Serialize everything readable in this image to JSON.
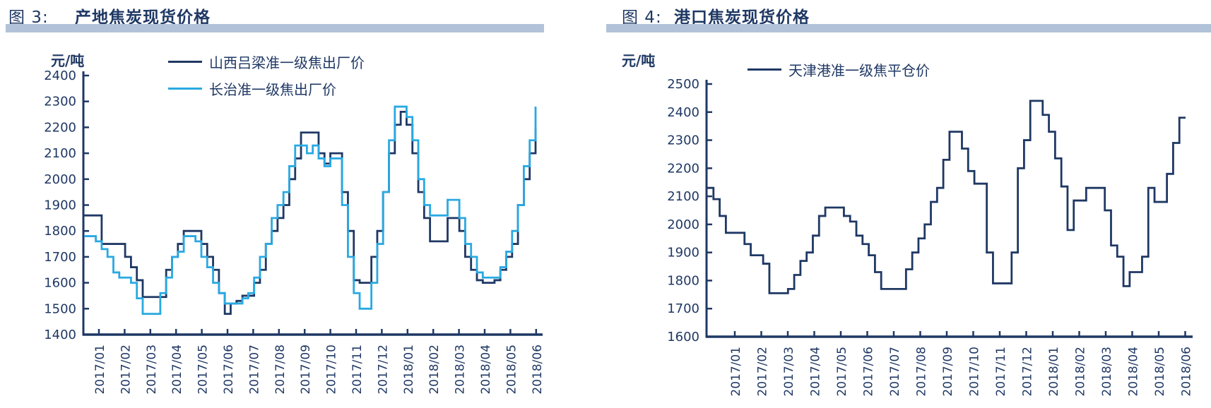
{
  "page": {
    "figure3_label": "图 3:",
    "figure3_title": "产地焦炭现货价格",
    "figure4_label": "图 4:",
    "figure4_title": "港口焦炭现货价格"
  },
  "colors": {
    "navy": "#1F3864",
    "light_blue": "#29A9E2",
    "title_bar": "#B2C3D9",
    "axis": "#1F3864",
    "tick_text": "#1F3864"
  },
  "chart_data": [
    {
      "type": "line",
      "title": "产地焦炭现货价格",
      "unit": "元/吨",
      "ylim": [
        1400,
        2400
      ],
      "yticks": [
        2400,
        2300,
        2200,
        2100,
        2000,
        1900,
        1800,
        1700,
        1600,
        1500,
        1400
      ],
      "grid": false,
      "legend_position": "top",
      "x_categories": [
        "2017/01",
        "2017/02",
        "2017/03",
        "2017/04",
        "2017/05",
        "2017/06",
        "2017/07",
        "2017/08",
        "2017/09",
        "2017/10",
        "2017/11",
        "2017/12",
        "2018/01",
        "2018/02",
        "2018/03",
        "2018/04",
        "2018/05",
        "2018/06"
      ],
      "series": [
        {
          "name": "山西吕梁准一级焦出厂价",
          "color": "#1F3864",
          "values": [
            1860,
            1860,
            1860,
            1750,
            1750,
            1750,
            1750,
            1700,
            1660,
            1610,
            1545,
            1545,
            1545,
            1545,
            1650,
            1700,
            1750,
            1800,
            1800,
            1800,
            1750,
            1700,
            1650,
            1560,
            1480,
            1520,
            1530,
            1550,
            1550,
            1600,
            1650,
            1750,
            1800,
            1850,
            1900,
            2000,
            2080,
            2180,
            2180,
            2180,
            2100,
            2060,
            2100,
            2100,
            1950,
            1800,
            1610,
            1600,
            1600,
            1700,
            1800,
            1950,
            2100,
            2210,
            2260,
            2210,
            2100,
            1950,
            1850,
            1760,
            1760,
            1760,
            1850,
            1850,
            1800,
            1700,
            1650,
            1610,
            1600,
            1600,
            1610,
            1650,
            1700,
            1750,
            1900,
            2000,
            2100,
            2200
          ]
        },
        {
          "name": "长治准一级焦出厂价",
          "color": "#29A9E2",
          "values": [
            1780,
            1780,
            1760,
            1730,
            1700,
            1640,
            1620,
            1620,
            1600,
            1540,
            1480,
            1480,
            1480,
            1560,
            1620,
            1700,
            1720,
            1780,
            1780,
            1760,
            1700,
            1660,
            1600,
            1560,
            1520,
            1520,
            1520,
            1540,
            1560,
            1620,
            1700,
            1750,
            1850,
            1900,
            1950,
            2050,
            2130,
            2130,
            2100,
            2130,
            2080,
            2050,
            2080,
            2080,
            1900,
            1700,
            1560,
            1500,
            1500,
            1600,
            1750,
            1950,
            2150,
            2280,
            2280,
            2240,
            2150,
            2000,
            1900,
            1860,
            1860,
            1860,
            1920,
            1920,
            1850,
            1750,
            1700,
            1640,
            1620,
            1620,
            1620,
            1660,
            1720,
            1800,
            1900,
            2050,
            2150,
            2280
          ]
        }
      ]
    },
    {
      "type": "line",
      "title": "港口焦炭现货价格",
      "unit": "元/吨",
      "ylim": [
        1600,
        2500
      ],
      "yticks": [
        2500,
        2400,
        2300,
        2200,
        2100,
        2000,
        1900,
        1800,
        1700,
        1600
      ],
      "grid": false,
      "legend_position": "top",
      "x_categories": [
        "2017/01",
        "2017/02",
        "2017/03",
        "2017/04",
        "2017/05",
        "2017/06",
        "2017/07",
        "2017/08",
        "2017/09",
        "2017/10",
        "2017/11",
        "2017/12",
        "2018/01",
        "2018/02",
        "2018/03",
        "2018/04",
        "2018/05",
        "2018/06"
      ],
      "series": [
        {
          "name": "天津港准一级焦平仓价",
          "color": "#1F3864",
          "values": [
            2130,
            2090,
            2030,
            1970,
            1970,
            1970,
            1930,
            1890,
            1890,
            1860,
            1755,
            1755,
            1755,
            1770,
            1820,
            1870,
            1900,
            1960,
            2030,
            2060,
            2060,
            2060,
            2030,
            2010,
            1960,
            1930,
            1890,
            1830,
            1770,
            1770,
            1770,
            1770,
            1840,
            1900,
            1950,
            2000,
            2080,
            2130,
            2230,
            2330,
            2330,
            2270,
            2190,
            2145,
            2145,
            1900,
            1790,
            1790,
            1790,
            1900,
            2200,
            2300,
            2440,
            2440,
            2390,
            2330,
            2235,
            2135,
            1980,
            2085,
            2085,
            2130,
            2130,
            2130,
            2050,
            1925,
            1885,
            1780,
            1830,
            1830,
            1885,
            2130,
            2080,
            2080,
            2180,
            2290,
            2380,
            2380
          ]
        }
      ]
    }
  ]
}
